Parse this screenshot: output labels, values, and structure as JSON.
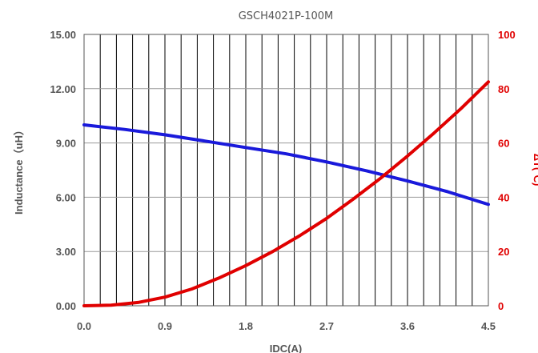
{
  "chart_data": {
    "type": "line",
    "title": "GSCH4021P-100M",
    "xlabel": "IDC(A)",
    "ylabel": "Inductance（uH）",
    "y2label": "ΔT(℃)",
    "xlim": [
      0,
      4.5
    ],
    "ylim": [
      0,
      15
    ],
    "y2lim": [
      0,
      100
    ],
    "x_ticks": [
      "0.0",
      "0.9",
      "1.8",
      "2.7",
      "3.6",
      "4.5"
    ],
    "y_ticks": [
      "0.00",
      "3.00",
      "6.00",
      "9.00",
      "12.00",
      "15.00"
    ],
    "y2_ticks": [
      "0",
      "20",
      "40",
      "60",
      "80",
      "100"
    ],
    "grid": true,
    "series": [
      {
        "axis": "left",
        "color": "#1a1adb",
        "x": [
          0,
          0.45,
          0.9,
          1.35,
          1.8,
          2.25,
          2.7,
          3.15,
          3.6,
          4.05,
          4.5
        ],
        "values": [
          10.0,
          9.75,
          9.45,
          9.1,
          8.75,
          8.4,
          7.95,
          7.45,
          6.9,
          6.3,
          5.6
        ]
      },
      {
        "axis": "right",
        "color": "#e00000",
        "x": [
          0,
          0.3,
          0.6,
          0.9,
          1.2,
          1.5,
          1.8,
          2.1,
          2.4,
          2.7,
          3.0,
          3.3,
          3.6,
          3.9,
          4.2,
          4.5
        ],
        "values": [
          0,
          0.2,
          1.2,
          3.2,
          6.2,
          10.2,
          14.8,
          20.0,
          25.8,
          32.2,
          39.4,
          47.0,
          55.2,
          63.8,
          72.8,
          82.5
        ]
      }
    ]
  }
}
